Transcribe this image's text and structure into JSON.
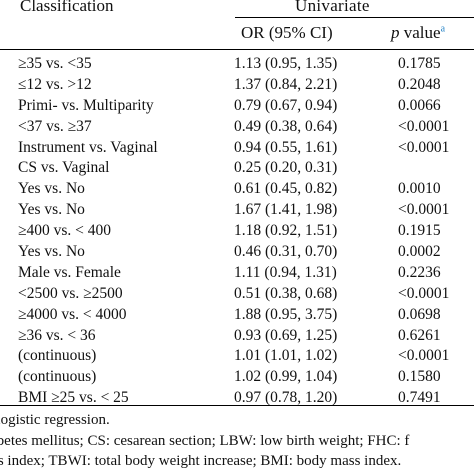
{
  "header": {
    "classification": "Classification",
    "univariate": "Univariate",
    "or_ci": "OR (95% CI)",
    "p_value_italic": "p",
    "p_value_text": " value",
    "p_value_note": "a"
  },
  "rows": [
    {
      "classification": "≥35 vs. <35",
      "or_ci": "1.13 (0.95, 1.35)",
      "p": "0.1785"
    },
    {
      "classification": "≤12 vs. >12",
      "or_ci": "1.37 (0.84, 2.21)",
      "p": "0.2048"
    },
    {
      "classification": "Primi- vs. Multiparity",
      "or_ci": "0.79 (0.67, 0.94)",
      "p": "0.0066"
    },
    {
      "classification": "<37 vs. ≥37",
      "or_ci": "0.49 (0.38, 0.64)",
      "p": "<0.0001"
    },
    {
      "classification": "Instrument vs. Vaginal",
      "or_ci": "0.94 (0.55, 1.61)",
      "p": "<0.0001"
    },
    {
      "classification": "CS vs. Vaginal",
      "or_ci": "0.25 (0.20, 0.31)",
      "p": ""
    },
    {
      "classification": "Yes vs. No",
      "or_ci": "0.61 (0.45, 0.82)",
      "p": "0.0010"
    },
    {
      "classification": "Yes vs. No",
      "or_ci": "1.67 (1.41, 1.98)",
      "p": "<0.0001"
    },
    {
      "classification": "≥400 vs. < 400",
      "or_ci": "1.18 (0.92, 1.51)",
      "p": "0.1915"
    },
    {
      "classification": "Yes vs. No",
      "or_ci": "0.46 (0.31, 0.70)",
      "p": "0.0002"
    },
    {
      "classification": "Male vs. Female",
      "or_ci": "1.11 (0.94, 1.31)",
      "p": "0.2236"
    },
    {
      "classification": "<2500 vs. ≥2500",
      "or_ci": "0.51 (0.38, 0.68)",
      "p": "<0.0001"
    },
    {
      "classification": "≥4000 vs. < 4000",
      "or_ci": "1.88 (0.95, 3.75)",
      "p": "0.0698"
    },
    {
      "classification": "≥36 vs. < 36",
      "or_ci": "0.93 (0.69, 1.25)",
      "p": "0.6261"
    },
    {
      "classification": "(continuous)",
      "or_ci": "1.01 (1.01, 1.02)",
      "p": "<0.0001"
    },
    {
      "classification": "(continuous)",
      "or_ci": "1.02 (0.99, 1.04)",
      "p": "0.1580"
    },
    {
      "classification": "BMI ≥25 vs. < 25",
      "or_ci": "0.97 (0.78, 1.20)",
      "p": "0.7491"
    }
  ],
  "footnotes": {
    "line1": "e logistic regression.",
    "line2": "abetes mellitus; CS: cesarean section; LBW: low birth weight; FHC: f",
    "line3": "ss index; TBWI: total body weight increase; BMI: body mass index."
  }
}
